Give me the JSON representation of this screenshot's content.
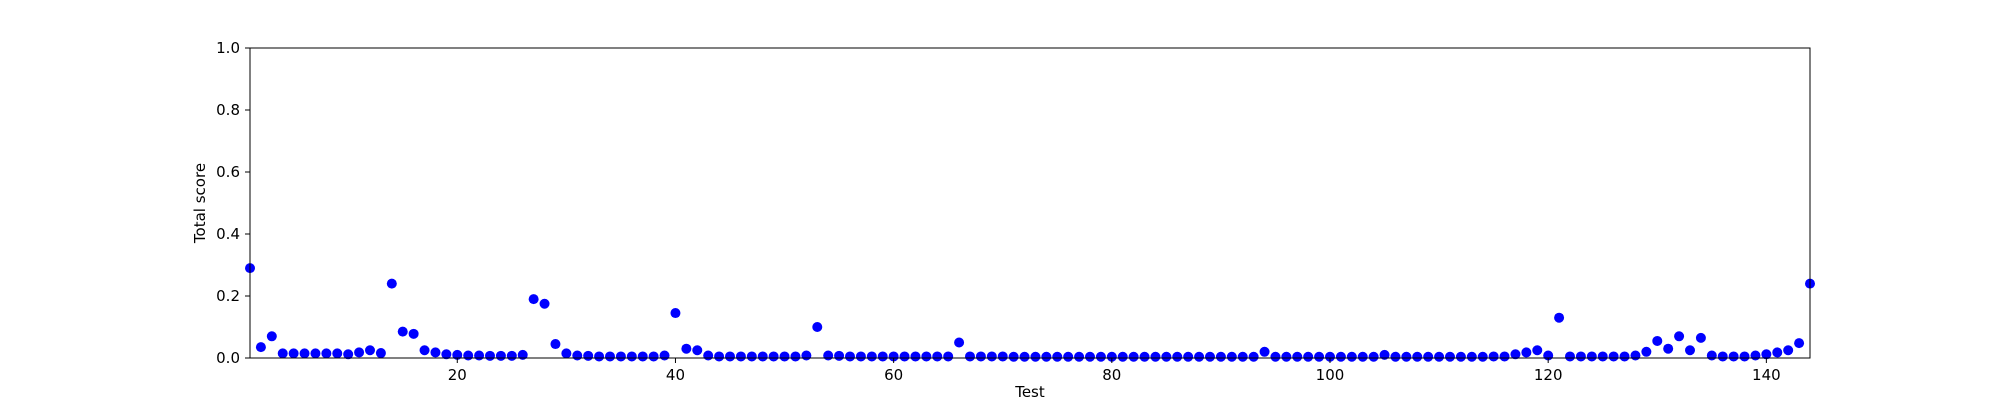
{
  "chart_data": {
    "type": "scatter",
    "title": "",
    "xlabel": "Test",
    "ylabel": "Total score",
    "xlim": [
      1,
      144
    ],
    "ylim": [
      0,
      1.0
    ],
    "xticks": [
      20,
      40,
      60,
      80,
      100,
      120,
      140
    ],
    "yticks": [
      0.0,
      0.2,
      0.4,
      0.6,
      0.8,
      1.0
    ],
    "xtick_labels": [
      "20",
      "40",
      "60",
      "80",
      "100",
      "120",
      "140"
    ],
    "ytick_labels": [
      "0.0",
      "0.2",
      "0.4",
      "0.6",
      "0.8",
      "1.0"
    ],
    "grid": false,
    "marker_color": "#0000ff",
    "series": [
      {
        "name": "Total score",
        "x": [
          1,
          2,
          3,
          4,
          5,
          6,
          7,
          8,
          9,
          10,
          11,
          12,
          13,
          14,
          15,
          16,
          17,
          18,
          19,
          20,
          21,
          22,
          23,
          24,
          25,
          26,
          27,
          28,
          29,
          30,
          31,
          32,
          33,
          34,
          35,
          36,
          37,
          38,
          39,
          40,
          41,
          42,
          43,
          44,
          45,
          46,
          47,
          48,
          49,
          50,
          51,
          52,
          53,
          54,
          55,
          56,
          57,
          58,
          59,
          60,
          61,
          62,
          63,
          64,
          65,
          66,
          67,
          68,
          69,
          70,
          71,
          72,
          73,
          74,
          75,
          76,
          77,
          78,
          79,
          80,
          81,
          82,
          83,
          84,
          85,
          86,
          87,
          88,
          89,
          90,
          91,
          92,
          93,
          94,
          95,
          96,
          97,
          98,
          99,
          100,
          101,
          102,
          103,
          104,
          105,
          106,
          107,
          108,
          109,
          110,
          111,
          112,
          113,
          114,
          115,
          116,
          117,
          118,
          119,
          120,
          121,
          122,
          123,
          124,
          125,
          126,
          127,
          128,
          129,
          130,
          131,
          132,
          133,
          134,
          135,
          136,
          137,
          138,
          139,
          140,
          141,
          142,
          143,
          144
        ],
        "y": [
          0.29,
          0.035,
          0.07,
          0.015,
          0.015,
          0.015,
          0.015,
          0.015,
          0.015,
          0.012,
          0.018,
          0.025,
          0.016,
          0.24,
          0.085,
          0.078,
          0.025,
          0.018,
          0.012,
          0.01,
          0.008,
          0.008,
          0.007,
          0.007,
          0.007,
          0.01,
          0.19,
          0.175,
          0.045,
          0.015,
          0.008,
          0.007,
          0.005,
          0.005,
          0.005,
          0.005,
          0.005,
          0.005,
          0.008,
          0.145,
          0.03,
          0.025,
          0.008,
          0.005,
          0.005,
          0.005,
          0.005,
          0.005,
          0.005,
          0.005,
          0.005,
          0.008,
          0.1,
          0.008,
          0.007,
          0.005,
          0.005,
          0.005,
          0.005,
          0.005,
          0.005,
          0.005,
          0.005,
          0.005,
          0.005,
          0.05,
          0.005,
          0.005,
          0.005,
          0.005,
          0.004,
          0.004,
          0.004,
          0.004,
          0.004,
          0.004,
          0.004,
          0.004,
          0.004,
          0.004,
          0.004,
          0.004,
          0.004,
          0.004,
          0.004,
          0.004,
          0.004,
          0.004,
          0.004,
          0.004,
          0.004,
          0.004,
          0.004,
          0.02,
          0.004,
          0.004,
          0.004,
          0.004,
          0.004,
          0.004,
          0.004,
          0.004,
          0.004,
          0.004,
          0.01,
          0.004,
          0.004,
          0.004,
          0.004,
          0.004,
          0.004,
          0.004,
          0.004,
          0.004,
          0.005,
          0.005,
          0.012,
          0.018,
          0.025,
          0.008,
          0.13,
          0.005,
          0.005,
          0.005,
          0.005,
          0.005,
          0.005,
          0.008,
          0.02,
          0.055,
          0.03,
          0.07,
          0.025,
          0.065,
          0.008,
          0.005,
          0.005,
          0.005,
          0.008,
          0.012,
          0.018,
          0.025,
          0.048,
          0.24
        ]
      }
    ]
  }
}
